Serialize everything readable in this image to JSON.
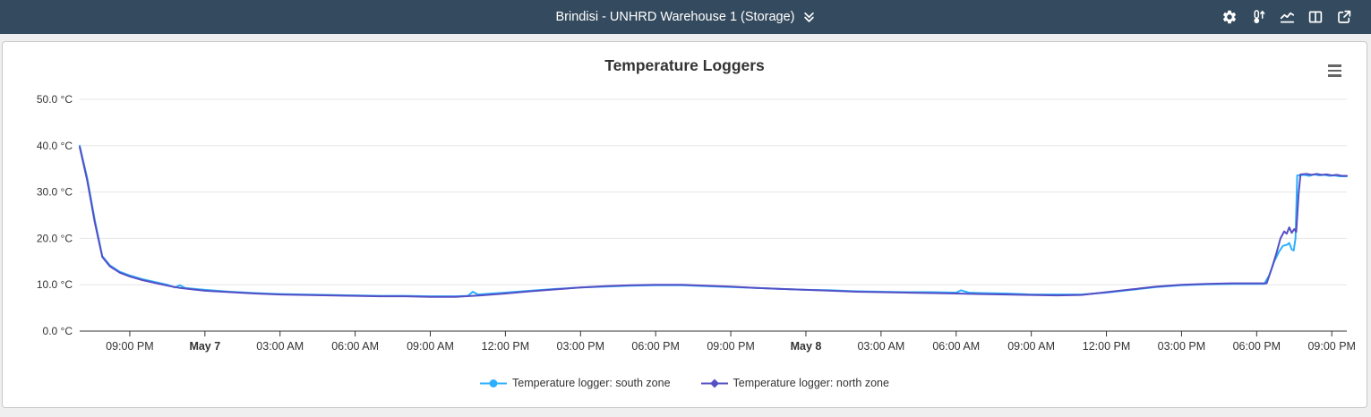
{
  "header": {
    "title": "Brindisi - UNHRD Warehouse 1 (Storage)",
    "icon_names": [
      "settings-icon",
      "thermometer-up-icon",
      "line-chart-icon",
      "columns-icon",
      "external-link-icon"
    ]
  },
  "chart_data": {
    "type": "line",
    "title": "Temperature Loggers",
    "xlabel": "",
    "ylabel": "°C",
    "ylim": [
      0,
      50
    ],
    "grid": true,
    "legend_position": "bottom",
    "y_axis": {
      "ticks": [
        {
          "value": 0,
          "label": "0.0 °C"
        },
        {
          "value": 10,
          "label": "10.0 °C"
        },
        {
          "value": 20,
          "label": "20.0 °C"
        },
        {
          "value": 30,
          "label": "30.0 °C"
        },
        {
          "value": 40,
          "label": "40.0 °C"
        },
        {
          "value": 50,
          "label": "50.0 °C"
        }
      ]
    },
    "x_axis": {
      "hours_domain": [
        0,
        50.6
      ],
      "ticks": [
        {
          "hour": 2,
          "label": "09:00 PM",
          "bold": false
        },
        {
          "hour": 5,
          "label": "May 7",
          "bold": true
        },
        {
          "hour": 8,
          "label": "03:00 AM",
          "bold": false
        },
        {
          "hour": 11,
          "label": "06:00 AM",
          "bold": false
        },
        {
          "hour": 14,
          "label": "09:00 AM",
          "bold": false
        },
        {
          "hour": 17,
          "label": "12:00 PM",
          "bold": false
        },
        {
          "hour": 20,
          "label": "03:00 PM",
          "bold": false
        },
        {
          "hour": 23,
          "label": "06:00 PM",
          "bold": false
        },
        {
          "hour": 26,
          "label": "09:00 PM",
          "bold": false
        },
        {
          "hour": 29,
          "label": "May 8",
          "bold": true
        },
        {
          "hour": 32,
          "label": "03:00 AM",
          "bold": false
        },
        {
          "hour": 35,
          "label": "06:00 AM",
          "bold": false
        },
        {
          "hour": 38,
          "label": "09:00 AM",
          "bold": false
        },
        {
          "hour": 41,
          "label": "12:00 PM",
          "bold": false
        },
        {
          "hour": 44,
          "label": "03:00 PM",
          "bold": false
        },
        {
          "hour": 47,
          "label": "06:00 PM",
          "bold": false
        },
        {
          "hour": 50,
          "label": "09:00 PM",
          "bold": false
        }
      ]
    },
    "series": [
      {
        "name": "Temperature logger: south zone",
        "slug": "south-zone",
        "color": "#2caffe",
        "marker": "circle",
        "points": [
          [
            0,
            40
          ],
          [
            0.3,
            33
          ],
          [
            0.6,
            24
          ],
          [
            0.9,
            16.2
          ],
          [
            1.2,
            14.2
          ],
          [
            1.6,
            12.8
          ],
          [
            2,
            12
          ],
          [
            2.5,
            11.2
          ],
          [
            3,
            10.6
          ],
          [
            3.5,
            10
          ],
          [
            3.8,
            9.4
          ],
          [
            4,
            9.9
          ],
          [
            4.2,
            9.3
          ],
          [
            4.6,
            9.1
          ],
          [
            5,
            8.9
          ],
          [
            6,
            8.5
          ],
          [
            7,
            8.2
          ],
          [
            8,
            8
          ],
          [
            9,
            7.9
          ],
          [
            10,
            7.8
          ],
          [
            11,
            7.7
          ],
          [
            12,
            7.6
          ],
          [
            13,
            7.6
          ],
          [
            14,
            7.5
          ],
          [
            15,
            7.5
          ],
          [
            15.5,
            7.6
          ],
          [
            15.7,
            8.5
          ],
          [
            15.9,
            7.9
          ],
          [
            17,
            8.3
          ],
          [
            18,
            8.7
          ],
          [
            19,
            9.1
          ],
          [
            20,
            9.4
          ],
          [
            21,
            9.6
          ],
          [
            22,
            9.8
          ],
          [
            23,
            9.9
          ],
          [
            24,
            9.9
          ],
          [
            25,
            9.7
          ],
          [
            26,
            9.5
          ],
          [
            27,
            9.3
          ],
          [
            28,
            9.1
          ],
          [
            29,
            8.9
          ],
          [
            30,
            8.8
          ],
          [
            31,
            8.6
          ],
          [
            32,
            8.5
          ],
          [
            33,
            8.4
          ],
          [
            34,
            8.4
          ],
          [
            35,
            8.3
          ],
          [
            35.2,
            8.8
          ],
          [
            35.5,
            8.3
          ],
          [
            36,
            8.2
          ],
          [
            37,
            8.1
          ],
          [
            38,
            7.9
          ],
          [
            39,
            7.9
          ],
          [
            40,
            7.9
          ],
          [
            41,
            8.3
          ],
          [
            42,
            8.9
          ],
          [
            43,
            9.5
          ],
          [
            44,
            9.9
          ],
          [
            45,
            10.1
          ],
          [
            46,
            10.2
          ],
          [
            47,
            10.2
          ],
          [
            47.3,
            10.2
          ],
          [
            47.5,
            12
          ],
          [
            47.7,
            15
          ],
          [
            47.9,
            17.2
          ],
          [
            48.05,
            18.4
          ],
          [
            48.2,
            18.6
          ],
          [
            48.3,
            19
          ],
          [
            48.4,
            17.6
          ],
          [
            48.48,
            17.4
          ],
          [
            48.55,
            20
          ],
          [
            48.62,
            33.6
          ],
          [
            48.9,
            33.7
          ],
          [
            49.1,
            33.5
          ],
          [
            49.3,
            33.8
          ],
          [
            49.5,
            33.6
          ],
          [
            49.7,
            33.7
          ],
          [
            49.9,
            33.5
          ],
          [
            50.1,
            33.6
          ],
          [
            50.3,
            33.4
          ],
          [
            50.6,
            33.4
          ]
        ]
      },
      {
        "name": "Temperature logger: north zone",
        "slug": "north-zone",
        "color": "#544fc5",
        "marker": "diamond",
        "points": [
          [
            0,
            39.7
          ],
          [
            0.3,
            32.5
          ],
          [
            0.6,
            23.5
          ],
          [
            0.9,
            16
          ],
          [
            1.2,
            14
          ],
          [
            1.6,
            12.6
          ],
          [
            2,
            11.8
          ],
          [
            2.5,
            11
          ],
          [
            3,
            10.4
          ],
          [
            3.5,
            9.8
          ],
          [
            4,
            9.3
          ],
          [
            4.5,
            9
          ],
          [
            5,
            8.7
          ],
          [
            6,
            8.4
          ],
          [
            7,
            8.1
          ],
          [
            8,
            7.9
          ],
          [
            9,
            7.8
          ],
          [
            10,
            7.7
          ],
          [
            11,
            7.6
          ],
          [
            12,
            7.5
          ],
          [
            13,
            7.5
          ],
          [
            14,
            7.4
          ],
          [
            15,
            7.4
          ],
          [
            16,
            7.7
          ],
          [
            17,
            8.1
          ],
          [
            18,
            8.6
          ],
          [
            19,
            9
          ],
          [
            20,
            9.4
          ],
          [
            21,
            9.7
          ],
          [
            22,
            9.9
          ],
          [
            23,
            10
          ],
          [
            24,
            10
          ],
          [
            25,
            9.8
          ],
          [
            26,
            9.6
          ],
          [
            27,
            9.3
          ],
          [
            28,
            9.1
          ],
          [
            29,
            8.9
          ],
          [
            30,
            8.7
          ],
          [
            31,
            8.5
          ],
          [
            32,
            8.4
          ],
          [
            33,
            8.3
          ],
          [
            34,
            8.2
          ],
          [
            35,
            8.1
          ],
          [
            36,
            8
          ],
          [
            37,
            7.9
          ],
          [
            38,
            7.8
          ],
          [
            39,
            7.7
          ],
          [
            40,
            7.8
          ],
          [
            41,
            8.4
          ],
          [
            42,
            9
          ],
          [
            43,
            9.6
          ],
          [
            44,
            10
          ],
          [
            45,
            10.2
          ],
          [
            46,
            10.3
          ],
          [
            47,
            10.3
          ],
          [
            47.4,
            10.3
          ],
          [
            47.6,
            13.5
          ],
          [
            47.8,
            17
          ],
          [
            47.95,
            20
          ],
          [
            48.1,
            21.5
          ],
          [
            48.2,
            21
          ],
          [
            48.3,
            22.4
          ],
          [
            48.4,
            21.2
          ],
          [
            48.5,
            22
          ],
          [
            48.58,
            21.4
          ],
          [
            48.68,
            30
          ],
          [
            48.75,
            33.8
          ],
          [
            49,
            33.9
          ],
          [
            49.2,
            33.7
          ],
          [
            49.4,
            33.9
          ],
          [
            49.6,
            33.7
          ],
          [
            49.8,
            33.8
          ],
          [
            50,
            33.6
          ],
          [
            50.2,
            33.7
          ],
          [
            50.4,
            33.5
          ],
          [
            50.6,
            33.5
          ]
        ]
      }
    ]
  }
}
